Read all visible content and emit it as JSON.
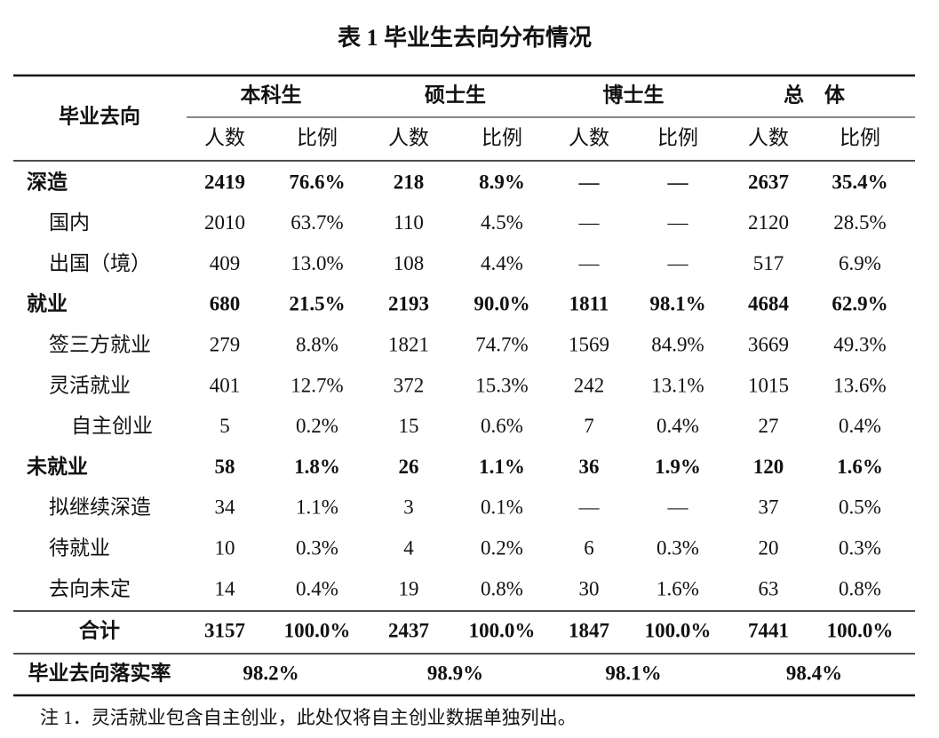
{
  "title": "表 1 毕业生去向分布情况",
  "table": {
    "header": {
      "row_label": "毕业去向",
      "groups": [
        "本科生",
        "硕士生",
        "博士生",
        "总　体"
      ],
      "subheaders": [
        "人数",
        "比例",
        "人数",
        "比例",
        "人数",
        "比例",
        "人数",
        "比例"
      ]
    },
    "rows": [
      {
        "label": "深造",
        "level": 0,
        "cells": [
          "2419",
          "76.6%",
          "218",
          "8.9%",
          "—",
          "—",
          "2637",
          "35.4%"
        ]
      },
      {
        "label": "国内",
        "level": 1,
        "cells": [
          "2010",
          "63.7%",
          "110",
          "4.5%",
          "—",
          "—",
          "2120",
          "28.5%"
        ]
      },
      {
        "label": "出国（境）",
        "level": 1,
        "cells": [
          "409",
          "13.0%",
          "108",
          "4.4%",
          "—",
          "—",
          "517",
          "6.9%"
        ]
      },
      {
        "label": "就业",
        "level": 0,
        "cells": [
          "680",
          "21.5%",
          "2193",
          "90.0%",
          "1811",
          "98.1%",
          "4684",
          "62.9%"
        ]
      },
      {
        "label": "签三方就业",
        "level": 1,
        "cells": [
          "279",
          "8.8%",
          "1821",
          "74.7%",
          "1569",
          "84.9%",
          "3669",
          "49.3%"
        ]
      },
      {
        "label": "灵活就业",
        "level": 1,
        "cells": [
          "401",
          "12.7%",
          "372",
          "15.3%",
          "242",
          "13.1%",
          "1015",
          "13.6%"
        ]
      },
      {
        "label": "自主创业",
        "level": 2,
        "cells": [
          "5",
          "0.2%",
          "15",
          "0.6%",
          "7",
          "0.4%",
          "27",
          "0.4%"
        ]
      },
      {
        "label": "未就业",
        "level": 0,
        "cells": [
          "58",
          "1.8%",
          "26",
          "1.1%",
          "36",
          "1.9%",
          "120",
          "1.6%"
        ]
      },
      {
        "label": "拟继续深造",
        "level": 1,
        "cells": [
          "34",
          "1.1%",
          "3",
          "0.1%",
          "—",
          "—",
          "37",
          "0.5%"
        ]
      },
      {
        "label": "待就业",
        "level": 1,
        "cells": [
          "10",
          "0.3%",
          "4",
          "0.2%",
          "6",
          "0.3%",
          "20",
          "0.3%"
        ]
      },
      {
        "label": "去向未定",
        "level": 1,
        "cells": [
          "14",
          "0.4%",
          "19",
          "0.8%",
          "30",
          "1.6%",
          "63",
          "0.8%"
        ]
      }
    ],
    "total": {
      "label": "合计",
      "cells": [
        "3157",
        "100.0%",
        "2437",
        "100.0%",
        "1847",
        "100.0%",
        "7441",
        "100.0%"
      ]
    },
    "rate": {
      "label": "毕业去向落实率",
      "cells": [
        "98.2%",
        "98.9%",
        "98.1%",
        "98.4%"
      ]
    }
  },
  "note": "注 1．灵活就业包含自主创业，此处仅将自主创业数据单独列出。"
}
